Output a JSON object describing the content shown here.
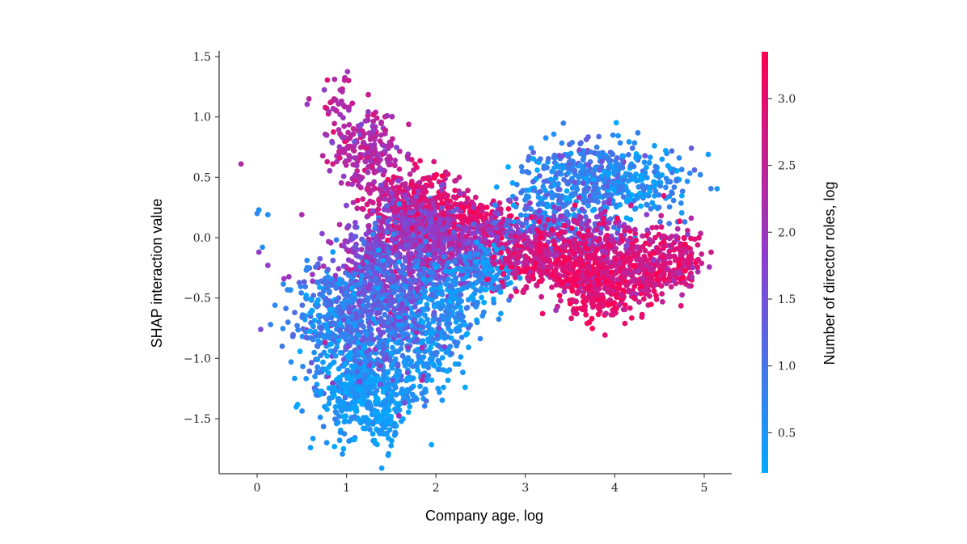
{
  "chart_data": {
    "type": "scatter",
    "title": "",
    "xlabel": "Company age, log",
    "ylabel": "SHAP interaction value",
    "xlim": [
      -0.4,
      5.3
    ],
    "ylim": [
      -1.95,
      1.55
    ],
    "x_ticks": [
      0,
      1,
      2,
      3,
      4,
      5
    ],
    "x_tick_labels": [
      "0",
      "1",
      "2",
      "3",
      "4",
      "5"
    ],
    "y_ticks": [
      1.5,
      1.0,
      0.5,
      0.0,
      -0.5,
      -1.0,
      -1.5
    ],
    "y_tick_labels": [
      "1.5",
      "1.0",
      "0.5",
      "0.0",
      "−0.5",
      "−1.0",
      "−1.5"
    ],
    "grid": false,
    "colorbar": {
      "label": "Number of director roles, log",
      "range": [
        0.2,
        3.35
      ],
      "ticks": [
        0.5,
        1.0,
        1.5,
        2.0,
        2.5,
        3.0
      ],
      "tick_labels": [
        "0.5",
        "1.0",
        "1.5",
        "2.0",
        "2.5",
        "3.0"
      ],
      "colormap": "cool-blue-to-red",
      "low_color": "#00aaff",
      "mid_color": "#8a3fd0",
      "high_color": "#ff0052"
    },
    "marker_color_encoding": "Number of director roles, log",
    "points": [
      {
        "x": -0.18,
        "y": 0.61,
        "c": 2.3
      },
      {
        "x": 0.0,
        "y": 0.2,
        "c": 0.7
      },
      {
        "x": 0.02,
        "y": 0.23,
        "c": 0.6
      },
      {
        "x": 0.12,
        "y": 0.19,
        "c": 0.6
      },
      {
        "x": 0.06,
        "y": -0.08,
        "c": 0.6
      },
      {
        "x": 0.02,
        "y": -0.12,
        "c": 1.9
      },
      {
        "x": 0.12,
        "y": -0.23,
        "c": 1.9
      },
      {
        "x": 0.04,
        "y": -0.76,
        "c": 1.6
      },
      {
        "x": 0.2,
        "y": -0.56,
        "c": 0.7
      },
      {
        "x": 0.28,
        "y": -0.9,
        "c": 0.9
      },
      {
        "x": 0.3,
        "y": -0.34,
        "c": 2.0
      },
      {
        "x": 0.5,
        "y": 0.19,
        "c": 2.2
      },
      {
        "x": 0.58,
        "y": 1.15,
        "c": 2.4
      },
      {
        "x": 0.62,
        "y": -0.36,
        "c": 1.9
      },
      {
        "x": 0.38,
        "y": -1.03,
        "c": 0.6
      },
      {
        "x": 0.15,
        "y": -0.72,
        "c": 0.8
      },
      {
        "x": 0.42,
        "y": -0.62,
        "c": 1.1
      }
    ],
    "clusters": [
      {
        "cx": 0.88,
        "cy": 1.02,
        "sx": 0.11,
        "sy": 0.18,
        "c": 2.35,
        "cs": 0.25,
        "n": 45,
        "rot": 0
      },
      {
        "cx": 1.28,
        "cy": 0.75,
        "sx": 0.16,
        "sy": 0.14,
        "c": 2.25,
        "cs": 0.3,
        "n": 150,
        "rot": 0
      },
      {
        "cx": 1.05,
        "cy": 0.62,
        "sx": 0.12,
        "sy": 0.1,
        "c": 2.3,
        "cs": 0.25,
        "n": 40,
        "rot": 0
      },
      {
        "cx": 1.55,
        "cy": 0.3,
        "sx": 0.2,
        "sy": 0.14,
        "c": 2.6,
        "cs": 0.35,
        "n": 180,
        "rot": 0
      },
      {
        "cx": 1.9,
        "cy": 0.22,
        "sx": 0.2,
        "sy": 0.16,
        "c": 2.9,
        "cs": 0.3,
        "n": 260,
        "rot": 0
      },
      {
        "cx": 2.3,
        "cy": 0.15,
        "sx": 0.2,
        "sy": 0.1,
        "c": 3.0,
        "cs": 0.25,
        "n": 200,
        "rot": 0
      },
      {
        "cx": 2.72,
        "cy": 0.03,
        "sx": 0.1,
        "sy": 0.1,
        "c": 2.3,
        "cs": 0.7,
        "n": 110,
        "rot": 0
      },
      {
        "cx": 1.65,
        "cy": -0.05,
        "sx": 0.32,
        "sy": 0.22,
        "c": 1.9,
        "cs": 0.4,
        "n": 450,
        "rot": 0
      },
      {
        "cx": 2.2,
        "cy": -0.1,
        "sx": 0.28,
        "sy": 0.14,
        "c": 1.9,
        "cs": 0.4,
        "n": 280,
        "rot": 0
      },
      {
        "cx": 1.2,
        "cy": -0.35,
        "sx": 0.25,
        "sy": 0.2,
        "c": 1.6,
        "cs": 0.45,
        "n": 220,
        "rot": 0
      },
      {
        "cx": 0.8,
        "cy": -0.65,
        "sx": 0.22,
        "sy": 0.22,
        "c": 0.9,
        "cs": 0.4,
        "n": 200,
        "rot": 0
      },
      {
        "cx": 1.1,
        "cy": -0.95,
        "sx": 0.25,
        "sy": 0.3,
        "c": 0.75,
        "cs": 0.35,
        "n": 320,
        "rot": 0
      },
      {
        "cx": 1.2,
        "cy": -1.3,
        "sx": 0.24,
        "sy": 0.18,
        "c": 0.45,
        "cs": 0.2,
        "n": 300,
        "rot": 0
      },
      {
        "cx": 1.45,
        "cy": -1.5,
        "sx": 0.08,
        "sy": 0.14,
        "c": 0.4,
        "cs": 0.15,
        "n": 70,
        "rot": 0
      },
      {
        "cx": 1.85,
        "cy": -0.85,
        "sx": 0.22,
        "sy": 0.28,
        "c": 0.5,
        "cs": 0.2,
        "n": 280,
        "rot": 0
      },
      {
        "cx": 1.5,
        "cy": -0.6,
        "sx": 0.25,
        "sy": 0.3,
        "c": 1.2,
        "cs": 0.45,
        "n": 320,
        "rot": 0
      },
      {
        "cx": 2.25,
        "cy": -0.5,
        "sx": 0.2,
        "sy": 0.15,
        "c": 0.6,
        "cs": 0.25,
        "n": 160,
        "rot": 0
      },
      {
        "cx": 2.6,
        "cy": -0.25,
        "sx": 0.15,
        "sy": 0.1,
        "c": 0.6,
        "cs": 0.3,
        "n": 110,
        "rot": 0
      },
      {
        "cx": 3.2,
        "cy": 0.25,
        "sx": 0.2,
        "sy": 0.18,
        "c": 0.6,
        "cs": 0.3,
        "n": 160,
        "rot": 0
      },
      {
        "cx": 3.7,
        "cy": 0.5,
        "sx": 0.3,
        "sy": 0.17,
        "c": 0.85,
        "cs": 0.4,
        "n": 300,
        "rot": 0
      },
      {
        "cx": 4.3,
        "cy": 0.45,
        "sx": 0.3,
        "sy": 0.15,
        "c": 0.6,
        "cs": 0.3,
        "n": 170,
        "rot": 0
      },
      {
        "cx": 3.5,
        "cy": 0.05,
        "sx": 0.35,
        "sy": 0.12,
        "c": 1.5,
        "cs": 0.45,
        "n": 220,
        "rot": 0
      },
      {
        "cx": 3.1,
        "cy": -0.15,
        "sx": 0.22,
        "sy": 0.13,
        "c": 2.7,
        "cs": 0.4,
        "n": 220,
        "rot": 0
      },
      {
        "cx": 3.7,
        "cy": -0.25,
        "sx": 0.3,
        "sy": 0.18,
        "c": 2.9,
        "cs": 0.35,
        "n": 360,
        "rot": 0
      },
      {
        "cx": 4.3,
        "cy": -0.2,
        "sx": 0.3,
        "sy": 0.15,
        "c": 2.7,
        "cs": 0.4,
        "n": 300,
        "rot": 0
      },
      {
        "cx": 3.9,
        "cy": -0.45,
        "sx": 0.25,
        "sy": 0.12,
        "c": 3.0,
        "cs": 0.3,
        "n": 180,
        "rot": 0
      },
      {
        "cx": 4.7,
        "cy": -0.2,
        "sx": 0.15,
        "sy": 0.12,
        "c": 2.8,
        "cs": 0.35,
        "n": 100,
        "rot": 0
      }
    ]
  }
}
